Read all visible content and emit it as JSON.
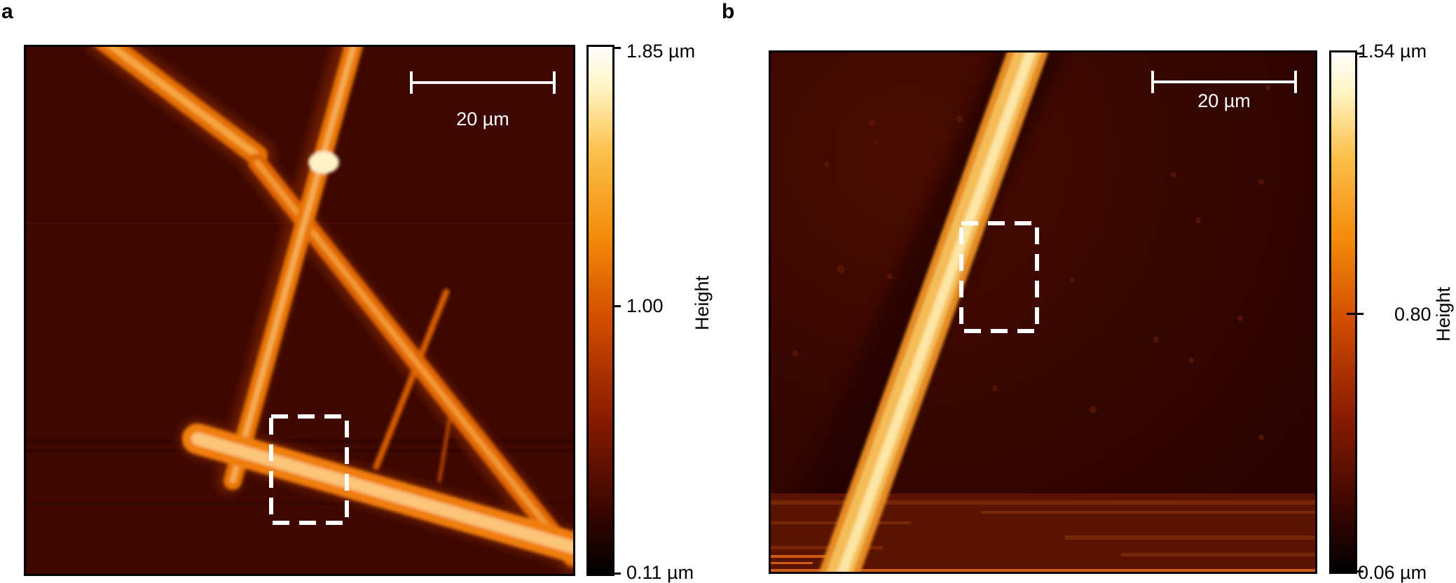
{
  "panels": [
    {
      "label": "a",
      "scale_bar": "20 µm",
      "colorbar": {
        "max": "1.85 µm",
        "mid": "1.00",
        "min": "0.11 µm",
        "title": "Height"
      }
    },
    {
      "label": "b",
      "scale_bar": "20 µm",
      "colorbar": {
        "max": "1.54 µm",
        "mid": "0.80",
        "min": "0.06 µm",
        "title": "Height"
      }
    }
  ]
}
